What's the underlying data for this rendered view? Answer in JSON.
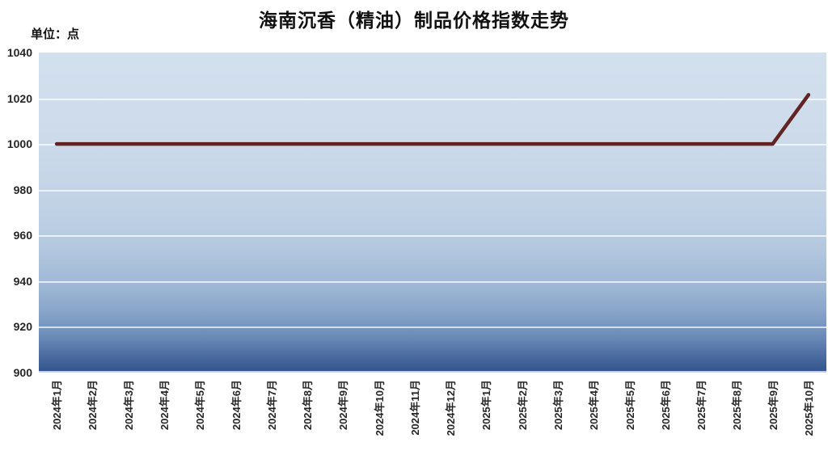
{
  "header": {
    "title": "海南沉香（精油）制品价格指数走势",
    "unit_label": "单位：点"
  },
  "chart_data": {
    "type": "line",
    "title": "海南沉香（精油）制品价格指数走势",
    "ylabel": "点",
    "categories": [
      "2024年1月",
      "2024年2月",
      "2024年3月",
      "2024年4月",
      "2024年5月",
      "2024年6月",
      "2024年7月",
      "2024年8月",
      "2024年9月",
      "2024年10月",
      "2024年11月",
      "2024年12月",
      "2025年1月",
      "2025年2月",
      "2025年3月",
      "2025年4月",
      "2025年5月",
      "2025年6月",
      "2025年7月",
      "2025年8月",
      "2025年9月",
      "2025年10月"
    ],
    "values": [
      1000,
      1000,
      1000,
      1000,
      1000,
      1000,
      1000,
      1000,
      1000,
      1000,
      1000,
      1000,
      1000,
      1000,
      1000,
      1000,
      1000,
      1000,
      1000,
      1000,
      1000,
      1021.5
    ],
    "ylim": [
      900,
      1040
    ],
    "yticks": [
      900,
      920,
      940,
      960,
      980,
      1000,
      1020,
      1040
    ],
    "grid": true,
    "legend_position": "none",
    "colors": {
      "line": "#622423",
      "plot_bg_top": "#d3e0ee",
      "plot_bg_bottom": "#30548a",
      "gridline": "#f4f8fc",
      "tick_text": "#262626",
      "title_text": "#111111"
    }
  }
}
